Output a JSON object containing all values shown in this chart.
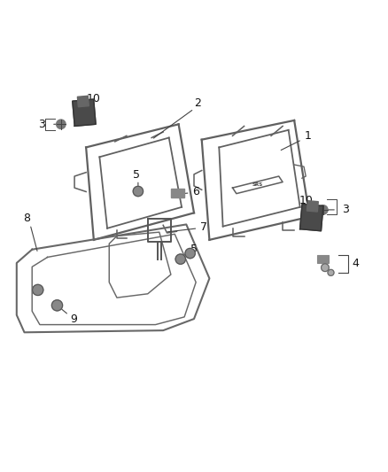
{
  "background_color": "#ffffff",
  "line_color": "#555555",
  "figure_width": 4.38,
  "figure_height": 5.33,
  "dpi": 100
}
